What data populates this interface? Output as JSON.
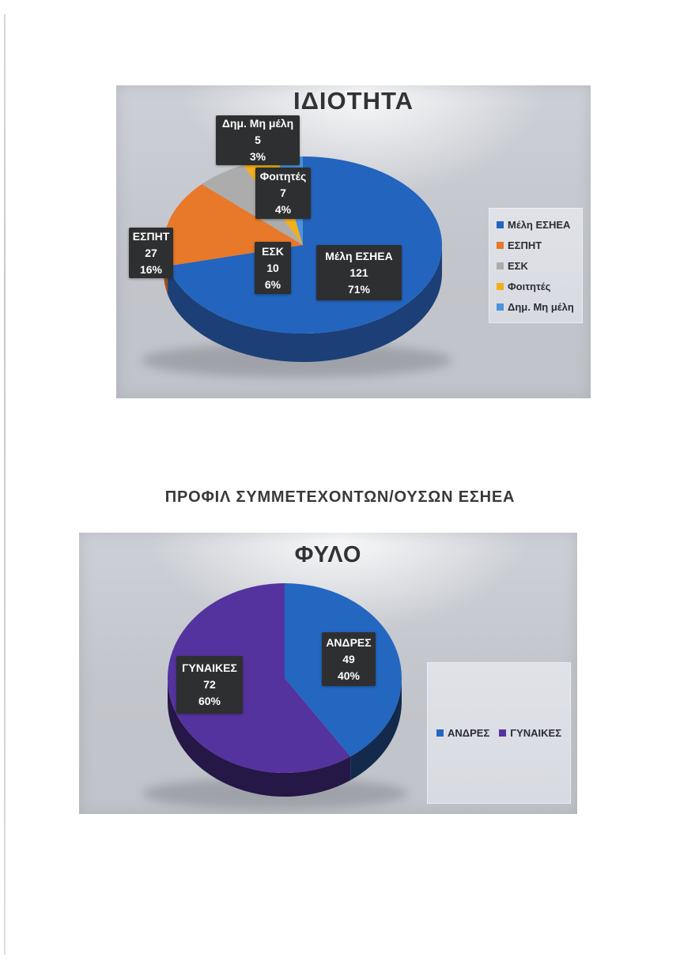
{
  "section_heading": "ΠΡΟΦΙΛ ΣΥΜΜΕΤΕΧΟΝΤΩΝ/ΟΥΣΩΝ ΕΣΗΕΑ",
  "label_box_color": "#2e2f30",
  "label_text_color": "#ffffff",
  "legend_text_color": "#2c2d33",
  "chart_data": [
    {
      "type": "pie",
      "style": "3d",
      "title": "ΙΔΙΟΤΗΤΑ",
      "labels": [
        "Μέλη ΕΣΗΕΑ",
        "ΕΣΠΗΤ",
        "ΕΣΚ",
        "Φοιτητές",
        "Δημ. Μη μέλη"
      ],
      "values": [
        121,
        27,
        10,
        7,
        5
      ],
      "percents": [
        "71%",
        "16%",
        "6%",
        "4%",
        "3%"
      ],
      "colors": [
        "#2364BE",
        "#E8782A",
        "#ACACAC",
        "#F2AE1C",
        "#4B93DA"
      ],
      "side_colors": [
        "#1B3F76",
        "#A04F18",
        "#6F6F6F",
        "#9A6C10",
        "#2B5E92"
      ],
      "legend_position": "right",
      "start_angle_deg": 0,
      "direction": "clockwise"
    },
    {
      "type": "pie",
      "style": "3d",
      "title": "ΦΥΛΟ",
      "labels": [
        "ΑΝΔΡΕΣ",
        "ΓΥΝΑΙΚΕΣ"
      ],
      "values": [
        49,
        72
      ],
      "percents": [
        "40%",
        "60%"
      ],
      "colors": [
        "#2467C0",
        "#55339E"
      ],
      "side_colors": [
        "#132A4C",
        "#251746"
      ],
      "legend_position": "bottom-right-box",
      "start_angle_deg": 0,
      "direction": "clockwise"
    }
  ]
}
